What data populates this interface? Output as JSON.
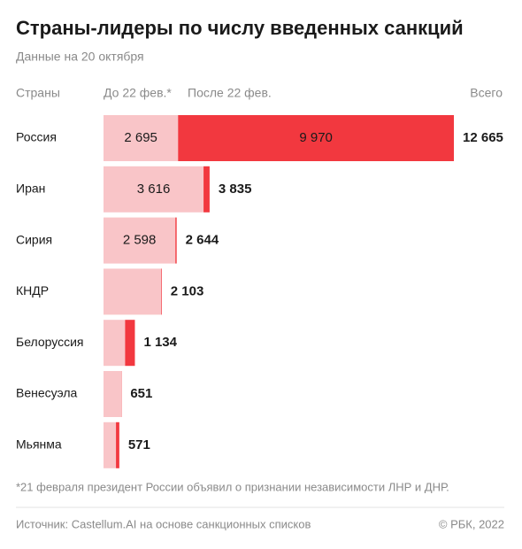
{
  "chart_data": {
    "type": "stacked-bar-horizontal",
    "title": "Страны-лидеры по числу введенных санкций",
    "subtitle": "Данные на 20 октября",
    "category_header": "Страны",
    "total_header": "Всего",
    "categories": [
      "Россия",
      "Иран",
      "Сирия",
      "КНДР",
      "Белоруссия",
      "Венесуэла",
      "Мьянма"
    ],
    "series": [
      {
        "name": "До 22 фев.*",
        "color": "#f9c5c8",
        "values": [
          2695,
          3616,
          2598,
          2080,
          780,
          640,
          450
        ],
        "value_labels": [
          "2 695",
          "3 616",
          "2 598",
          null,
          null,
          null,
          null
        ]
      },
      {
        "name": "После 22 фев.",
        "color": "#f2383f",
        "values": [
          9970,
          219,
          46,
          23,
          354,
          11,
          121
        ],
        "value_labels": [
          "9 970",
          null,
          null,
          null,
          null,
          null,
          null
        ]
      }
    ],
    "totals": {
      "values": [
        12665,
        3835,
        2644,
        2103,
        1134,
        651,
        571
      ],
      "value_labels": [
        "12 665",
        "3 835",
        "2 644",
        "2 103",
        "1 134",
        "651",
        "571"
      ]
    },
    "xlim": [
      0,
      12665
    ],
    "footnote": "*21 февраля президент России объявил о признании независимости ЛНР и ДНР.",
    "source": "Источник: Castellum.AI на основе санкционных списков",
    "copyright": "© РБК, 2022"
  }
}
